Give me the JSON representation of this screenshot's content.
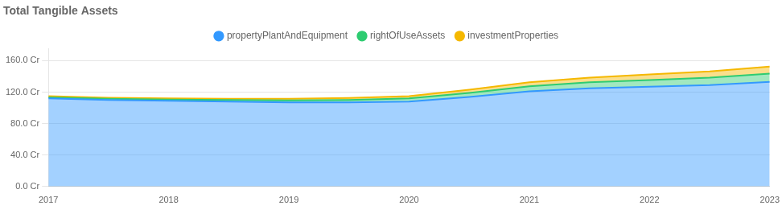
{
  "chart_data": {
    "type": "area",
    "title": "Total Tangible Assets",
    "x": [
      2017,
      2017.5,
      2018,
      2018.5,
      2019,
      2019.5,
      2020,
      2020.5,
      2021,
      2021.5,
      2022,
      2022.5,
      2023
    ],
    "series": [
      {
        "name": "propertyPlantAndEquipment",
        "color": "#3399ff",
        "values": [
          112,
          110,
          109,
          108,
          107,
          107,
          108,
          114,
          121,
          125,
          127,
          129,
          133
        ]
      },
      {
        "name": "rightOfUseAssets",
        "color": "#2ecc71",
        "values": [
          1.5,
          1.5,
          1.5,
          2,
          2.5,
          3,
          4,
          5,
          6.5,
          7.5,
          8.5,
          9.5,
          10.5
        ]
      },
      {
        "name": "investmentProperties",
        "color": "#f5b800",
        "values": [
          1.5,
          1.5,
          1.5,
          1.5,
          2,
          2.5,
          3,
          4,
          5,
          6,
          7,
          8,
          9
        ]
      }
    ],
    "stacked": true,
    "xlim": [
      2017,
      2023
    ],
    "xticks": [
      2017,
      2018,
      2019,
      2020,
      2021,
      2022,
      2023
    ],
    "ylim": [
      0,
      175
    ],
    "yticks": [
      {
        "value": 0,
        "label": "0.0 Cr"
      },
      {
        "value": 40,
        "label": "40.0 Cr"
      },
      {
        "value": 80,
        "label": "80.0 Cr"
      },
      {
        "value": 120,
        "label": "120.0 Cr"
      },
      {
        "value": 160,
        "label": "160.0 Cr"
      }
    ],
    "grid": "y",
    "legend": "top"
  }
}
